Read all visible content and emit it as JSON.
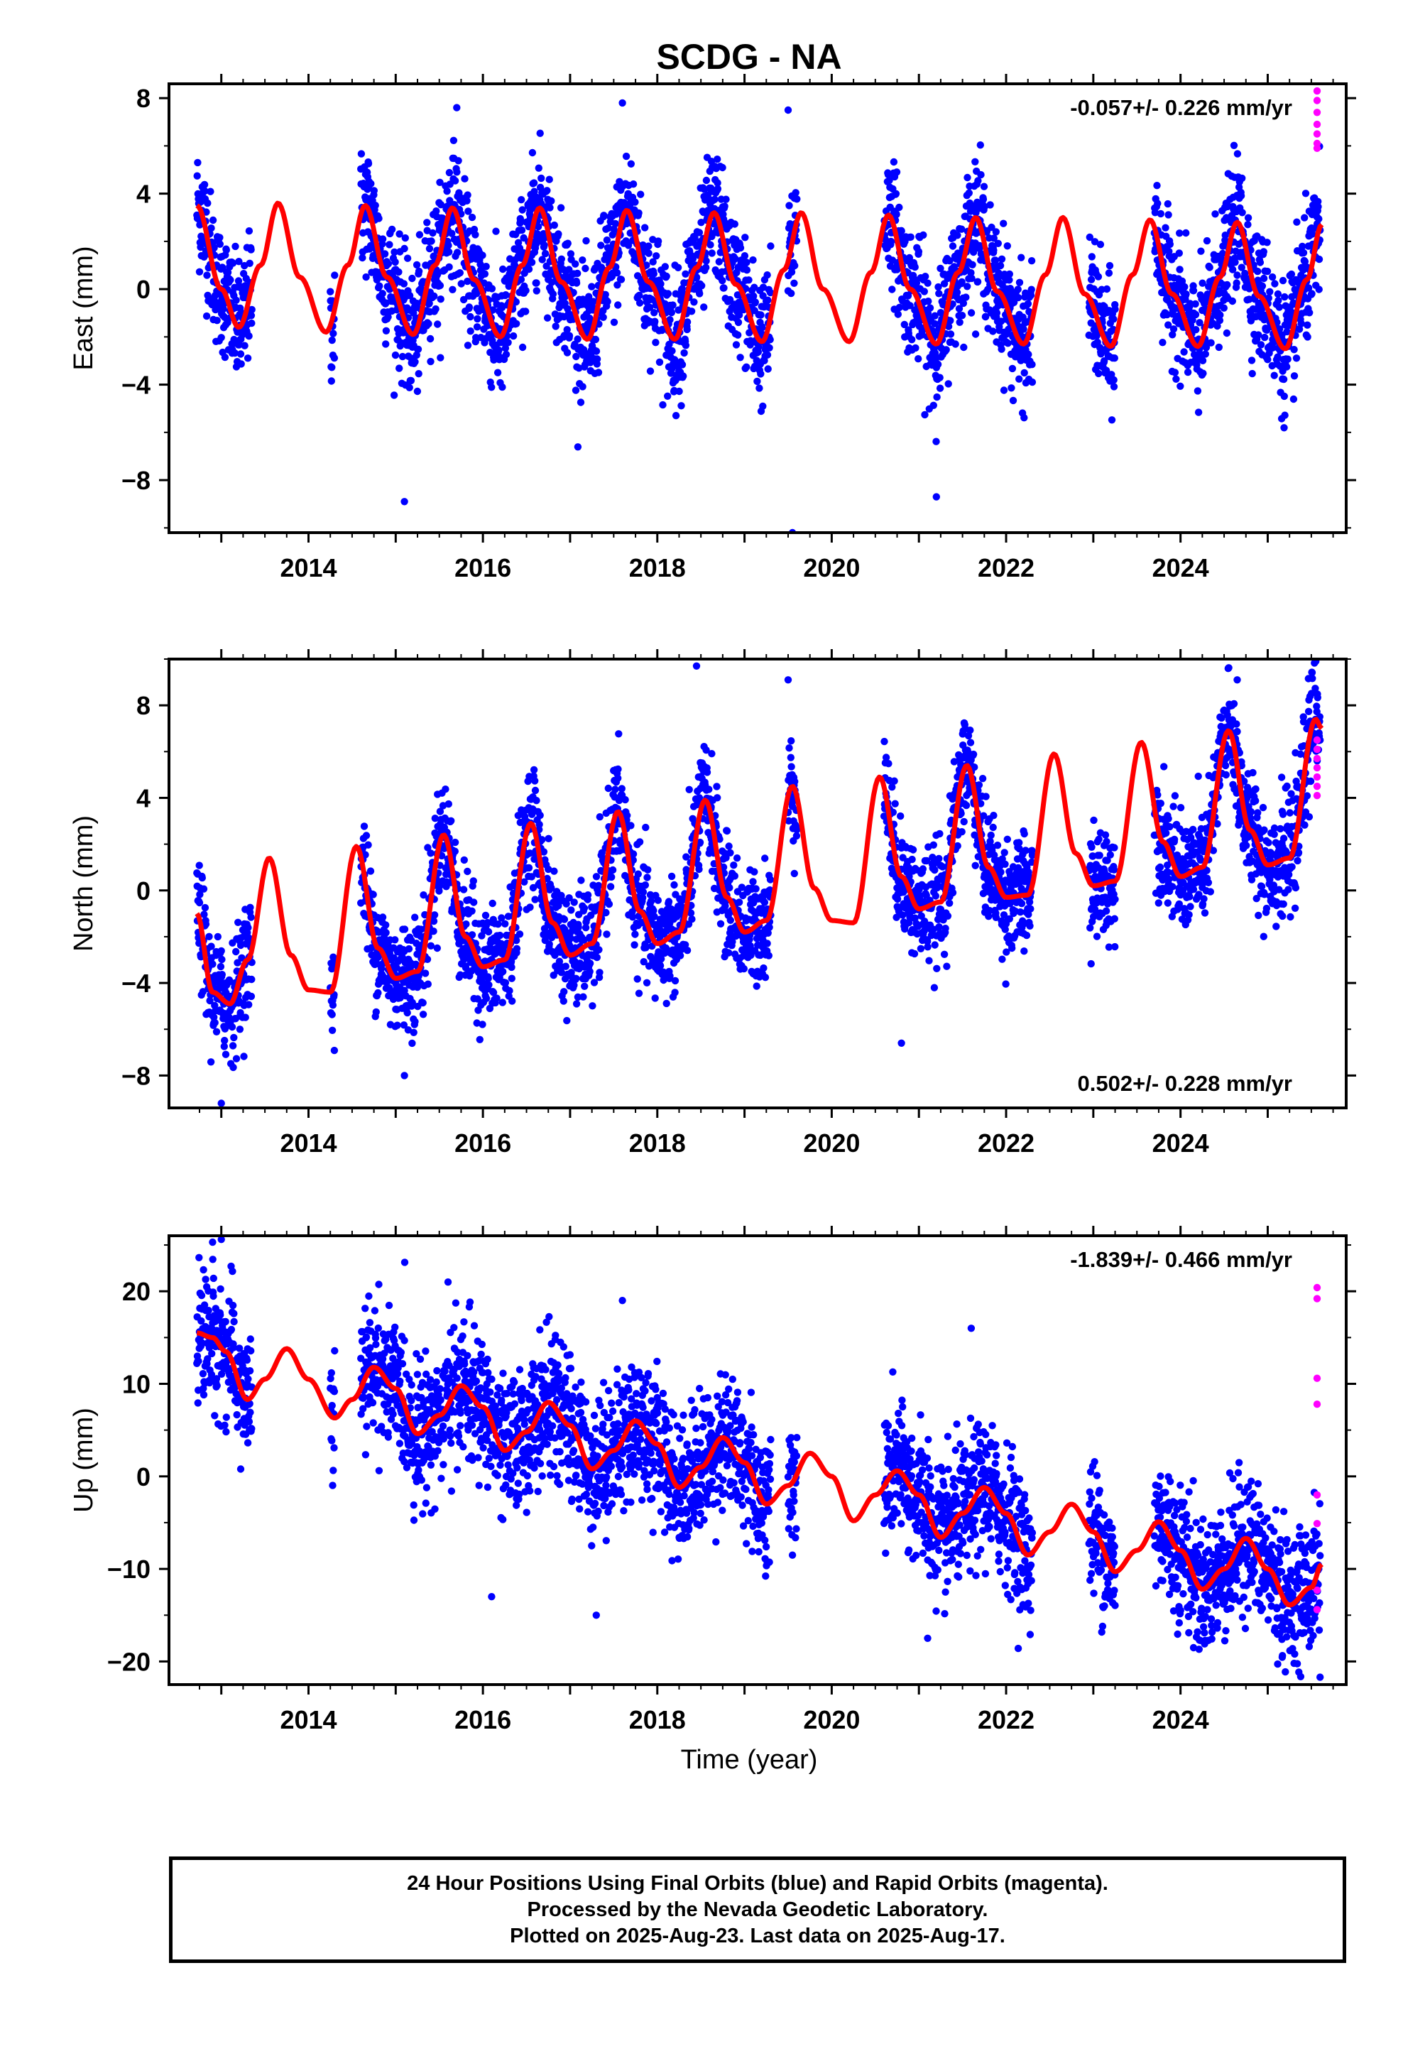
{
  "title": "SCDG - NA",
  "xlabel": "Time (year)",
  "x_ticks": [
    2014,
    2016,
    2018,
    2020,
    2022,
    2024
  ],
  "colors": {
    "final": "#0000ff",
    "rapid": "#ff00ff",
    "model": "#ff0000",
    "axis": "#000000"
  },
  "footer": {
    "line1": "24 Hour Positions Using Final Orbits (blue) and Rapid Orbits (magenta).",
    "line2": "Processed by the Nevada Geodetic Laboratory.",
    "line3": "Plotted on 2025-Aug-23. Last data on 2025-Aug-17."
  },
  "chart_data": [
    {
      "type": "scatter",
      "ylabel": "East (mm)",
      "rate_label": "-0.057+/- 0.226 mm/yr",
      "rate_position": "top-right",
      "xlim": [
        2012.4,
        2025.9
      ],
      "ylim": [
        -10.2,
        8.6
      ],
      "y_ticks": [
        -8,
        -4,
        0,
        4,
        8
      ],
      "model": {
        "x": [
          2012.72,
          2013.0,
          2013.2,
          2013.45,
          2013.65,
          2013.9,
          2014.2,
          2014.45,
          2014.65,
          2014.9,
          2015.2,
          2015.45,
          2015.65,
          2015.9,
          2016.2,
          2016.45,
          2016.65,
          2016.9,
          2017.2,
          2017.45,
          2017.65,
          2017.9,
          2018.2,
          2018.45,
          2018.65,
          2018.9,
          2019.2,
          2019.45,
          2019.65,
          2019.9,
          2020.2,
          2020.45,
          2020.65,
          2020.9,
          2021.2,
          2021.45,
          2021.65,
          2021.9,
          2022.2,
          2022.45,
          2022.65,
          2022.9,
          2023.2,
          2023.45,
          2023.65,
          2023.9,
          2024.2,
          2024.45,
          2024.65,
          2024.9,
          2025.2,
          2025.45,
          2025.62
        ],
        "values": [
          3.5,
          0.0,
          -1.6,
          1.0,
          3.6,
          0.5,
          -1.8,
          1.0,
          3.5,
          0.5,
          -1.9,
          1.0,
          3.4,
          0.4,
          -2.0,
          1.0,
          3.4,
          0.3,
          -2.1,
          0.9,
          3.3,
          0.3,
          -2.1,
          0.9,
          3.2,
          0.2,
          -2.2,
          0.8,
          3.2,
          0.0,
          -2.2,
          0.7,
          3.1,
          0.0,
          -2.3,
          0.7,
          3.0,
          -0.1,
          -2.3,
          0.6,
          3.0,
          -0.2,
          -2.4,
          0.6,
          2.9,
          -0.2,
          -2.4,
          0.5,
          2.8,
          -0.3,
          -2.5,
          0.4,
          2.7
        ]
      },
      "final_segments": [
        [
          2012.72,
          2013.35
        ],
        [
          2014.25,
          2014.3
        ],
        [
          2014.6,
          2019.3
        ],
        [
          2019.5,
          2019.6
        ],
        [
          2020.6,
          2022.3
        ],
        [
          2022.95,
          2023.25
        ],
        [
          2023.7,
          2025.6
        ]
      ],
      "final_noise_sd": 1.3,
      "final_outliers": [
        [
          2015.1,
          -8.9
        ],
        [
          2019.55,
          -10.2
        ],
        [
          2019.5,
          7.5
        ],
        [
          2021.2,
          -8.7
        ],
        [
          2017.6,
          7.8
        ],
        [
          2015.7,
          7.6
        ]
      ],
      "rapid_values": [
        8.3,
        7.9,
        7.4,
        6.9,
        6.5,
        6.1,
        5.9
      ]
    },
    {
      "type": "scatter",
      "ylabel": "North (mm)",
      "rate_label": "0.502+/- 0.228 mm/yr",
      "rate_position": "bottom-right",
      "xlim": [
        2012.4,
        2025.9
      ],
      "ylim": [
        -9.4,
        10.0
      ],
      "y_ticks": [
        -8,
        -4,
        0,
        4,
        8
      ],
      "model": {
        "x": [
          2012.72,
          2012.9,
          2013.1,
          2013.3,
          2013.55,
          2013.8,
          2014.0,
          2014.25,
          2014.55,
          2014.8,
          2015.0,
          2015.25,
          2015.55,
          2015.8,
          2016.0,
          2016.25,
          2016.55,
          2016.8,
          2017.0,
          2017.25,
          2017.55,
          2017.8,
          2018.0,
          2018.25,
          2018.55,
          2018.8,
          2019.0,
          2019.25,
          2019.55,
          2019.8,
          2020.0,
          2020.25,
          2020.55,
          2020.8,
          2021.0,
          2021.25,
          2021.55,
          2021.8,
          2022.0,
          2022.25,
          2022.55,
          2022.8,
          2023.0,
          2023.25,
          2023.55,
          2023.8,
          2024.0,
          2024.25,
          2024.55,
          2024.8,
          2025.0,
          2025.25,
          2025.55,
          2025.62
        ],
        "values": [
          -1.0,
          -4.4,
          -4.9,
          -3.0,
          1.4,
          -2.8,
          -4.3,
          -4.4,
          1.9,
          -2.5,
          -3.8,
          -3.5,
          2.4,
          -2.0,
          -3.3,
          -3.0,
          2.9,
          -1.4,
          -2.8,
          -2.3,
          3.4,
          -0.9,
          -2.3,
          -1.8,
          3.9,
          -0.3,
          -1.8,
          -1.3,
          4.5,
          0.1,
          -1.3,
          -1.4,
          4.9,
          0.6,
          -0.8,
          -0.5,
          5.4,
          1.0,
          -0.3,
          -0.2,
          5.9,
          1.6,
          0.2,
          0.4,
          6.4,
          2.1,
          0.6,
          1.0,
          6.9,
          2.6,
          1.1,
          1.4,
          7.4,
          7.0
        ]
      },
      "final_segments": [
        [
          2012.72,
          2013.35
        ],
        [
          2014.25,
          2014.3
        ],
        [
          2014.6,
          2019.3
        ],
        [
          2019.5,
          2019.6
        ],
        [
          2020.6,
          2022.3
        ],
        [
          2022.95,
          2023.25
        ],
        [
          2023.7,
          2025.6
        ]
      ],
      "final_noise_sd": 1.2,
      "final_outliers": [
        [
          2018.45,
          9.7
        ],
        [
          2019.5,
          9.1
        ],
        [
          2013.0,
          -9.2
        ],
        [
          2024.65,
          9.1
        ],
        [
          2020.8,
          -6.6
        ],
        [
          2015.1,
          -8.0
        ]
      ],
      "rapid_values": [
        6.5,
        6.1,
        5.7,
        5.3,
        4.9,
        4.5,
        4.1
      ]
    },
    {
      "type": "scatter",
      "ylabel": "Up (mm)",
      "rate_label": "-1.839+/- 0.466 mm/yr",
      "rate_position": "top-right",
      "xlim": [
        2012.4,
        2025.9
      ],
      "ylim": [
        -22.5,
        26.0
      ],
      "y_ticks": [
        -20,
        -10,
        0,
        10,
        20
      ],
      "model": {
        "x": [
          2012.72,
          2012.9,
          2013.05,
          2013.3,
          2013.5,
          2013.75,
          2014.0,
          2014.3,
          2014.5,
          2014.75,
          2015.0,
          2015.25,
          2015.5,
          2015.75,
          2016.0,
          2016.25,
          2016.5,
          2016.75,
          2017.0,
          2017.25,
          2017.5,
          2017.75,
          2018.0,
          2018.25,
          2018.5,
          2018.75,
          2019.0,
          2019.25,
          2019.5,
          2019.75,
          2020.0,
          2020.25,
          2020.5,
          2020.75,
          2021.0,
          2021.25,
          2021.5,
          2021.75,
          2022.0,
          2022.25,
          2022.5,
          2022.75,
          2023.0,
          2023.25,
          2023.5,
          2023.75,
          2024.0,
          2024.25,
          2024.5,
          2024.75,
          2025.0,
          2025.25,
          2025.5,
          2025.62
        ],
        "values": [
          15.5,
          15.0,
          13.5,
          8.3,
          10.5,
          13.8,
          10.5,
          6.3,
          8.3,
          11.8,
          9.5,
          4.6,
          6.6,
          9.8,
          7.5,
          2.8,
          4.8,
          8.0,
          5.5,
          0.8,
          2.8,
          6.0,
          3.5,
          -1.2,
          1.0,
          4.2,
          1.5,
          -3.0,
          -1.0,
          2.5,
          0.0,
          -4.8,
          -2.0,
          0.6,
          -2.0,
          -6.6,
          -4.0,
          -1.2,
          -4.0,
          -8.5,
          -6.0,
          -3.0,
          -6.0,
          -10.3,
          -8.0,
          -4.9,
          -8.0,
          -12.2,
          -10.0,
          -6.7,
          -10.0,
          -13.9,
          -12.0,
          -9.5
        ]
      },
      "final_segments": [
        [
          2012.72,
          2013.35
        ],
        [
          2014.25,
          2014.3
        ],
        [
          2014.6,
          2019.3
        ],
        [
          2019.5,
          2019.6
        ],
        [
          2020.6,
          2022.3
        ],
        [
          2022.95,
          2023.25
        ],
        [
          2023.7,
          2025.6
        ]
      ],
      "final_noise_sd": 3.6,
      "final_outliers": [
        [
          2012.9,
          25.3
        ],
        [
          2013.0,
          25.6
        ],
        [
          2015.6,
          21.0
        ],
        [
          2017.6,
          19.0
        ],
        [
          2021.6,
          16.0
        ],
        [
          2025.6,
          -21.7
        ],
        [
          2021.1,
          -17.5
        ],
        [
          2016.1,
          -13.0
        ],
        [
          2017.3,
          -15.0
        ]
      ],
      "rapid_values": [
        20.4,
        19.2,
        10.6,
        7.8,
        -2.0,
        -5.1,
        -12.3,
        -14.4
      ]
    }
  ]
}
